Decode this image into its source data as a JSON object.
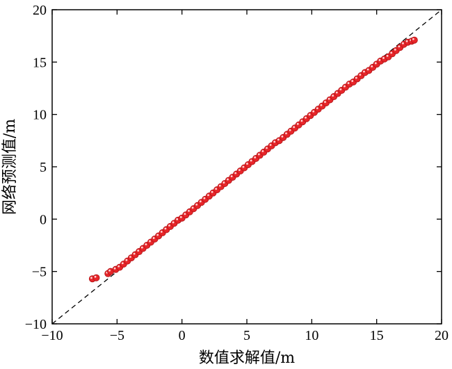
{
  "chart_data": {
    "type": "scatter",
    "title": "",
    "xlabel": "数值求解值/m",
    "ylabel": "网络预测值/m",
    "xlim": [
      -10,
      20
    ],
    "ylim": [
      -10,
      20
    ],
    "x_ticks": [
      -10,
      -5,
      0,
      5,
      10,
      15,
      20
    ],
    "y_ticks": [
      -10,
      -5,
      0,
      5,
      10,
      15,
      20
    ],
    "x_tick_labels": [
      "−10",
      "−5",
      "0",
      "5",
      "10",
      "15",
      "20"
    ],
    "y_tick_labels": [
      "−10",
      "−5",
      "0",
      "5",
      "10",
      "15",
      "20"
    ],
    "grid": false,
    "reference_line": {
      "style": "dashed",
      "color": "#000000",
      "points": [
        [
          -10,
          -10
        ],
        [
          20,
          20
        ]
      ]
    },
    "marker_color": "#e8262a",
    "series": [
      {
        "points": [
          [
            -6.9,
            -5.7
          ],
          [
            -6.6,
            -5.6
          ],
          [
            -5.7,
            -5.2
          ],
          [
            -5.5,
            -5.0
          ],
          [
            -5.1,
            -4.8
          ],
          [
            -4.8,
            -4.6
          ],
          [
            -4.5,
            -4.3
          ],
          [
            -4.2,
            -4.0
          ],
          [
            -3.9,
            -3.7
          ],
          [
            -3.6,
            -3.4
          ],
          [
            -3.3,
            -3.1
          ],
          [
            -3.0,
            -2.8
          ],
          [
            -2.7,
            -2.5
          ],
          [
            -2.4,
            -2.2
          ],
          [
            -2.1,
            -1.9
          ],
          [
            -1.8,
            -1.6
          ],
          [
            -1.5,
            -1.3
          ],
          [
            -1.2,
            -1.0
          ],
          [
            -0.9,
            -0.7
          ],
          [
            -0.6,
            -0.4
          ],
          [
            -0.3,
            -0.1
          ],
          [
            0.0,
            0.1
          ],
          [
            0.3,
            0.4
          ],
          [
            0.6,
            0.7
          ],
          [
            0.9,
            1.0
          ],
          [
            1.2,
            1.3
          ],
          [
            1.5,
            1.6
          ],
          [
            1.8,
            1.9
          ],
          [
            2.1,
            2.2
          ],
          [
            2.4,
            2.5
          ],
          [
            2.7,
            2.8
          ],
          [
            3.0,
            3.1
          ],
          [
            3.3,
            3.4
          ],
          [
            3.6,
            3.7
          ],
          [
            3.9,
            4.0
          ],
          [
            4.2,
            4.3
          ],
          [
            4.5,
            4.6
          ],
          [
            4.8,
            4.9
          ],
          [
            5.1,
            5.2
          ],
          [
            5.4,
            5.5
          ],
          [
            5.7,
            5.8
          ],
          [
            6.0,
            6.1
          ],
          [
            6.3,
            6.4
          ],
          [
            6.6,
            6.7
          ],
          [
            6.9,
            7.0
          ],
          [
            7.2,
            7.3
          ],
          [
            7.5,
            7.5
          ],
          [
            7.8,
            7.8
          ],
          [
            8.1,
            8.1
          ],
          [
            8.4,
            8.4
          ],
          [
            8.7,
            8.7
          ],
          [
            9.0,
            9.0
          ],
          [
            9.3,
            9.3
          ],
          [
            9.6,
            9.6
          ],
          [
            9.9,
            9.9
          ],
          [
            10.2,
            10.2
          ],
          [
            10.5,
            10.5
          ],
          [
            10.8,
            10.8
          ],
          [
            11.1,
            11.1
          ],
          [
            11.4,
            11.4
          ],
          [
            11.7,
            11.7
          ],
          [
            12.0,
            12.0
          ],
          [
            12.3,
            12.3
          ],
          [
            12.6,
            12.6
          ],
          [
            12.9,
            12.9
          ],
          [
            13.2,
            13.1
          ],
          [
            13.5,
            13.4
          ],
          [
            13.8,
            13.7
          ],
          [
            14.1,
            14.0
          ],
          [
            14.4,
            14.2
          ],
          [
            14.7,
            14.5
          ],
          [
            15.0,
            14.8
          ],
          [
            15.3,
            15.1
          ],
          [
            15.6,
            15.3
          ],
          [
            15.9,
            15.5
          ],
          [
            16.2,
            15.8
          ],
          [
            16.5,
            16.1
          ],
          [
            16.8,
            16.4
          ],
          [
            17.1,
            16.7
          ],
          [
            17.4,
            16.9
          ],
          [
            17.7,
            17.0
          ],
          [
            17.9,
            17.1
          ]
        ]
      }
    ]
  }
}
